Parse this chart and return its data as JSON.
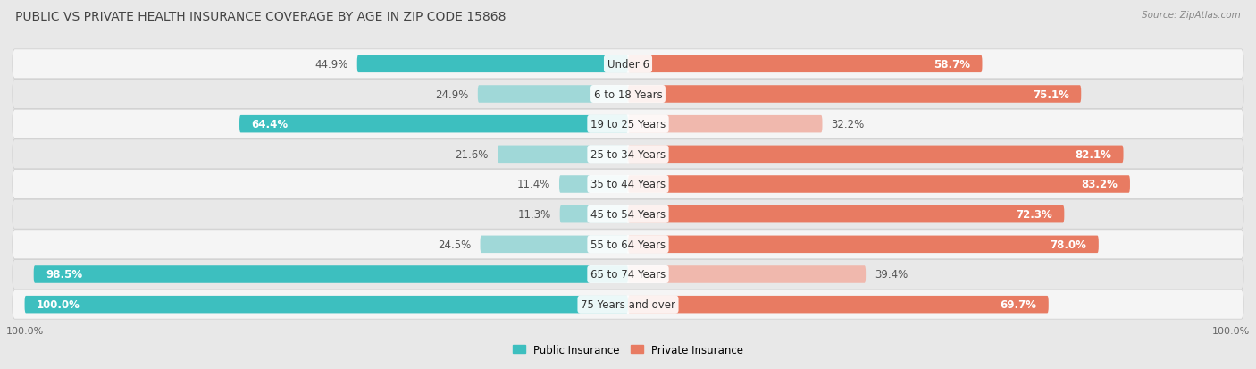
{
  "title": "PUBLIC VS PRIVATE HEALTH INSURANCE COVERAGE BY AGE IN ZIP CODE 15868",
  "source": "Source: ZipAtlas.com",
  "categories": [
    "Under 6",
    "6 to 18 Years",
    "19 to 25 Years",
    "25 to 34 Years",
    "35 to 44 Years",
    "45 to 54 Years",
    "55 to 64 Years",
    "65 to 74 Years",
    "75 Years and over"
  ],
  "public_values": [
    44.9,
    24.9,
    64.4,
    21.6,
    11.4,
    11.3,
    24.5,
    98.5,
    100.0
  ],
  "private_values": [
    58.7,
    75.1,
    32.2,
    82.1,
    83.2,
    72.3,
    78.0,
    39.4,
    69.7
  ],
  "public_color": "#3DBFBF",
  "public_color_light": "#A0D8D8",
  "private_color": "#E87B62",
  "private_color_light": "#F0B8AD",
  "bar_height": 0.58,
  "background_color": "#e8e8e8",
  "row_bg_light": "#f5f5f5",
  "row_bg_dark": "#e8e8e8",
  "xlim_abs": 100,
  "title_fontsize": 10,
  "label_fontsize": 8.5,
  "value_fontsize": 8.5,
  "source_fontsize": 7.5
}
